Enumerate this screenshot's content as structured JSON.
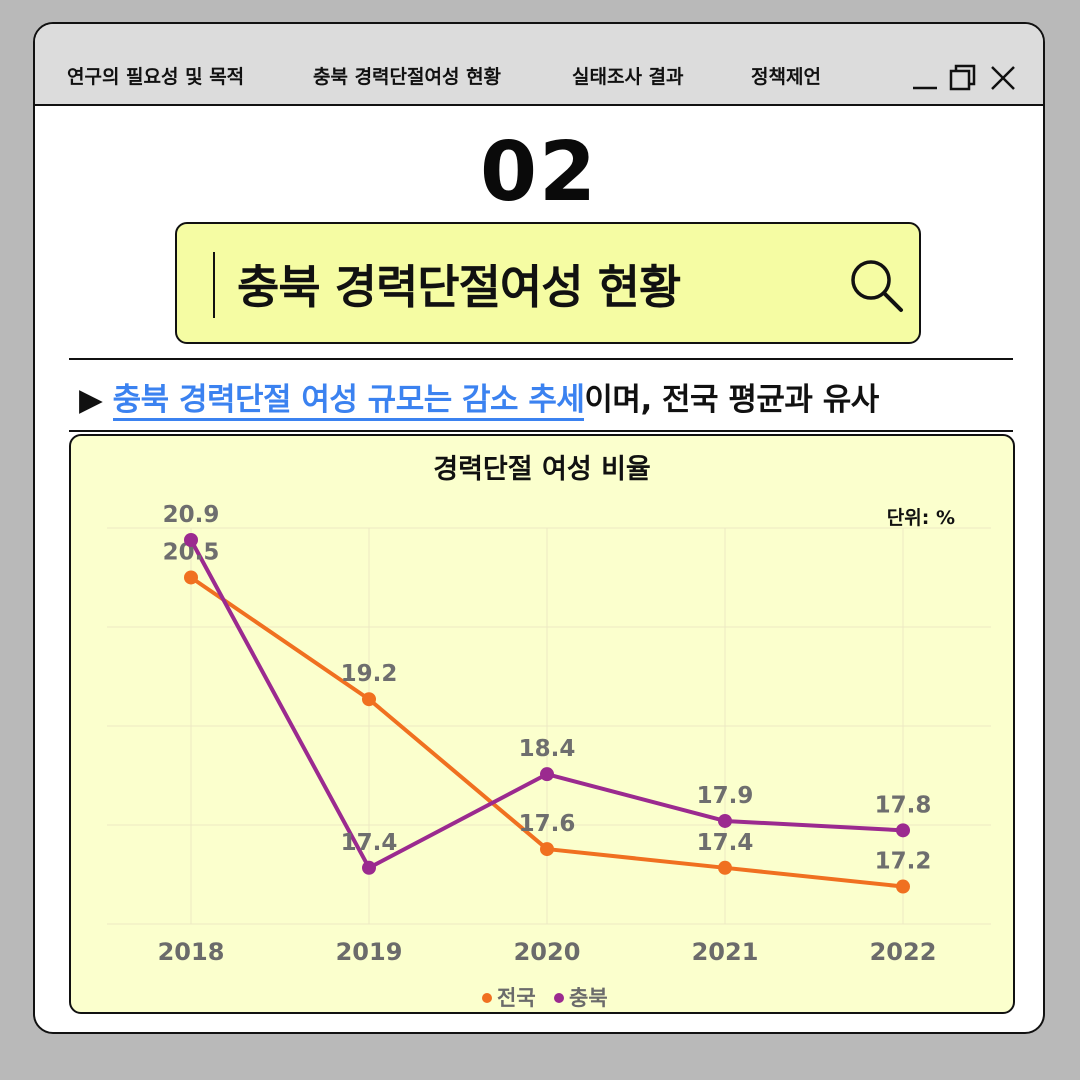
{
  "nav": {
    "tabs": [
      "연구의 필요성 및 목적",
      "충북 경력단절여성 현황",
      "실태조사 결과",
      "정책제언"
    ]
  },
  "window_controls": [
    "minimize-icon",
    "restore-icon",
    "close-icon"
  ],
  "section": {
    "number": "02",
    "title": "충북 경력단절여성 현황"
  },
  "subhead": {
    "marker": "▶",
    "highlight": "충북 경력단절 여성 규모는 감소 추세",
    "rest": "이며, 전국 평균과 유사"
  },
  "colors": {
    "accent_blue": "#3b82f0",
    "title_box": "#f5fca3",
    "chart_bg": "#fbffcd",
    "national": "#f07020",
    "chungbuk": "#9b2a8f"
  },
  "chart_data": {
    "type": "line",
    "title": "경력단절 여성 비율",
    "unit_label": "단위: %",
    "categories": [
      "2018",
      "2019",
      "2020",
      "2021",
      "2022"
    ],
    "series": [
      {
        "name": "전국",
        "color": "#f07020",
        "values": [
          20.5,
          19.2,
          17.6,
          17.4,
          17.2
        ]
      },
      {
        "name": "충북",
        "color": "#9b2a8f",
        "values": [
          20.9,
          17.4,
          18.4,
          17.9,
          17.8
        ]
      }
    ],
    "ylim": [
      16.8,
      20.9
    ],
    "grid": true,
    "legend": "bottom-center"
  }
}
